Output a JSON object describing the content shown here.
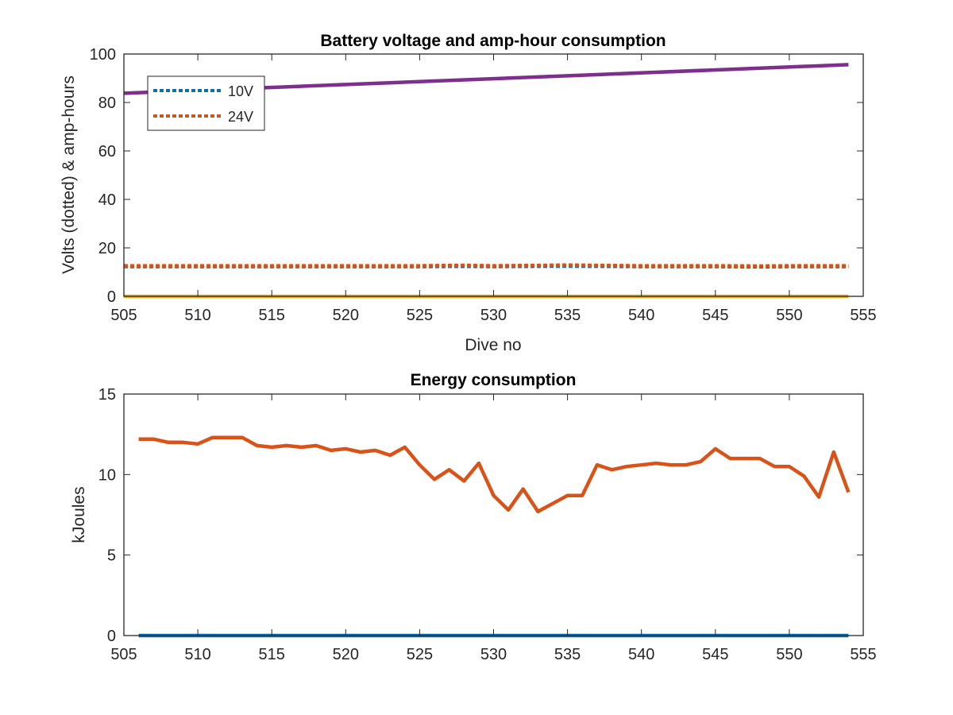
{
  "chart_data": [
    {
      "type": "line",
      "title": "Battery voltage and amp-hour consumption",
      "xlabel": "Dive no",
      "ylabel": "Volts (dotted) & amp-hours",
      "xlim": [
        505,
        555
      ],
      "ylim": [
        0,
        100
      ],
      "xticks": [
        505,
        510,
        515,
        520,
        525,
        530,
        535,
        540,
        545,
        550,
        555
      ],
      "yticks": [
        0,
        20,
        40,
        60,
        80,
        100
      ],
      "grid": false,
      "legend_location": "top-left",
      "series": [
        {
          "name": "10V",
          "style": "dotted",
          "color": "#0072BD",
          "x": [
            505,
            510,
            515,
            520,
            525,
            528,
            530,
            535,
            540,
            545,
            548,
            550,
            554
          ],
          "y": [
            12.3,
            12.3,
            12.3,
            12.3,
            12.3,
            12.4,
            12.3,
            12.5,
            12.3,
            12.3,
            12.2,
            12.3,
            12.3
          ]
        },
        {
          "name": "24V",
          "style": "dotted",
          "color": "#D95319",
          "x": [
            505,
            510,
            515,
            520,
            525,
            528,
            530,
            535,
            540,
            545,
            548,
            550,
            554
          ],
          "y": [
            12.6,
            12.6,
            12.6,
            12.6,
            12.6,
            12.8,
            12.6,
            12.9,
            12.6,
            12.6,
            12.5,
            12.6,
            12.6
          ]
        },
        {
          "style": "solid",
          "color": "#EDB120",
          "x": [
            505,
            554
          ],
          "y": [
            0,
            0
          ]
        },
        {
          "style": "solid",
          "color": "#7E2F8E",
          "x": [
            505,
            554
          ],
          "y": [
            83.8,
            95.6
          ]
        }
      ]
    },
    {
      "type": "line",
      "title": "Energy consumption",
      "xlabel": "",
      "ylabel": "kJoules",
      "xlim": [
        505,
        555
      ],
      "ylim": [
        0,
        15
      ],
      "xticks": [
        505,
        510,
        515,
        520,
        525,
        530,
        535,
        540,
        545,
        550,
        555
      ],
      "yticks": [
        0,
        5,
        10,
        15
      ],
      "grid": false,
      "series": [
        {
          "style": "solid",
          "color": "#D95319",
          "x": [
            506,
            507,
            508,
            509,
            510,
            511,
            512,
            513,
            514,
            515,
            516,
            517,
            518,
            519,
            520,
            521,
            522,
            523,
            524,
            525,
            526,
            527,
            528,
            529,
            530,
            531,
            532,
            533,
            534,
            535,
            536,
            537,
            538,
            539,
            540,
            541,
            542,
            543,
            544,
            545,
            546,
            547,
            548,
            549,
            550,
            551,
            552,
            553,
            554
          ],
          "y": [
            12.2,
            12.2,
            12.0,
            12.0,
            11.9,
            12.3,
            12.3,
            12.3,
            11.8,
            11.7,
            11.8,
            11.7,
            11.8,
            11.5,
            11.6,
            11.4,
            11.5,
            11.2,
            11.7,
            10.6,
            9.7,
            10.3,
            9.6,
            10.7,
            8.7,
            7.8,
            9.1,
            7.7,
            8.2,
            8.7,
            8.7,
            10.6,
            10.3,
            10.5,
            10.6,
            10.7,
            10.6,
            10.6,
            10.8,
            11.6,
            11.0,
            11.0,
            11.0,
            10.5,
            10.5,
            9.9,
            8.6,
            11.4,
            8.9
          ]
        },
        {
          "style": "solid",
          "color": "#0072BD",
          "x": [
            506,
            554
          ],
          "y": [
            0,
            0
          ]
        }
      ]
    }
  ]
}
